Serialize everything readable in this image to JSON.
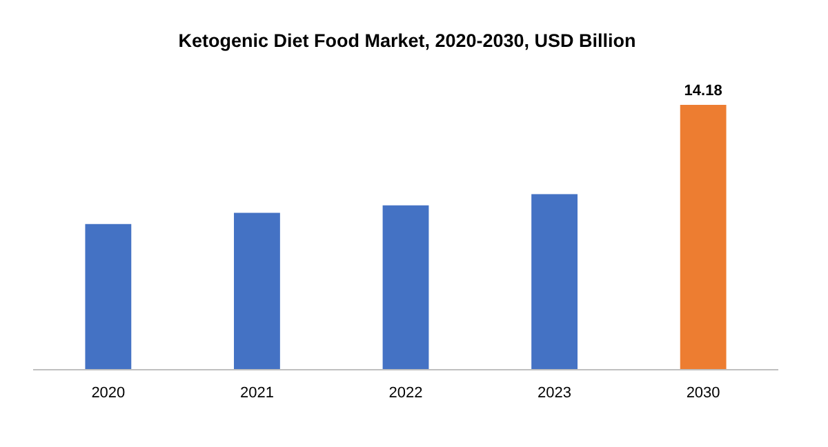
{
  "chart_data": {
    "type": "bar",
    "title": "Ketogenic Diet Food Market, 2020-2030, USD Billion",
    "categories": [
      "2020",
      "2021",
      "2022",
      "2023",
      "2030"
    ],
    "values": [
      7.8,
      8.4,
      8.8,
      9.4,
      14.18
    ],
    "ylim": [
      0,
      14.18
    ],
    "colors": [
      "#4472c4",
      "#4472c4",
      "#4472c4",
      "#4472c4",
      "#ed7d31"
    ],
    "value_labels": [
      null,
      null,
      null,
      null,
      "14.18"
    ]
  }
}
